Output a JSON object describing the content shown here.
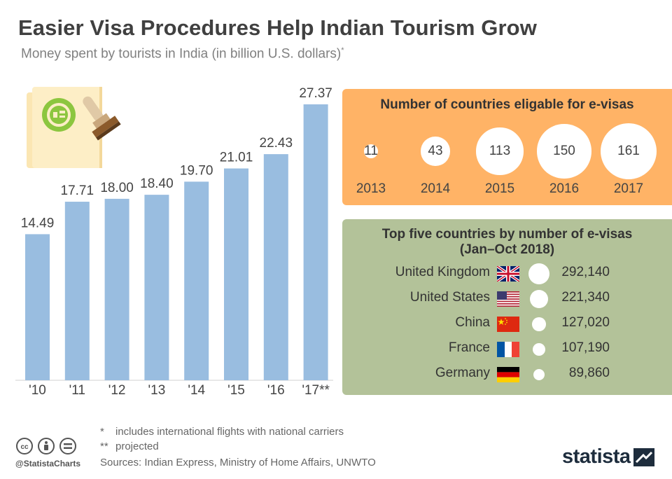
{
  "header": {
    "title": "Easier Visa Procedures Help Indian Tourism Grow",
    "subtitle": "Money spent by tourists in India (in billion U.S. dollars)",
    "subtitle_mark": "*"
  },
  "chart_data": [
    {
      "type": "bar",
      "categories": [
        "'10",
        "'11",
        "'12",
        "'13",
        "'14",
        "'15",
        "'16",
        "'17**"
      ],
      "values": [
        14.49,
        17.71,
        18.0,
        18.4,
        19.7,
        21.01,
        22.43,
        27.37
      ],
      "value_labels": [
        "14.49",
        "17.71",
        "18.00",
        "18.40",
        "19.70",
        "21.01",
        "22.43",
        "27.37"
      ],
      "ylim": [
        0,
        27.37
      ],
      "bar_color": "#99bde0",
      "grid": false
    },
    {
      "type": "bubble",
      "title": "Number of countries eligable for e-visas",
      "categories": [
        "2013",
        "2014",
        "2015",
        "2016",
        "2017"
      ],
      "values": [
        11,
        43,
        113,
        150,
        161
      ],
      "value_labels": [
        "11",
        "43",
        "113",
        "150",
        "161"
      ]
    },
    {
      "type": "table",
      "title": "Top five countries by number of e-visas",
      "title_line2": "(Jan–Oct 2018)",
      "rows": [
        {
          "country": "United Kingdom",
          "flag": "uk-flag-icon",
          "value": 292140,
          "label": "292,140"
        },
        {
          "country": "United States",
          "flag": "us-flag-icon",
          "value": 221340,
          "label": "221,340"
        },
        {
          "country": "China",
          "flag": "china-flag-icon",
          "value": 127020,
          "label": "127,020"
        },
        {
          "country": "France",
          "flag": "france-flag-icon",
          "value": 107190,
          "label": "107,190"
        },
        {
          "country": "Germany",
          "flag": "germany-flag-icon",
          "value": 89860,
          "label": "89,860"
        }
      ]
    }
  ],
  "footer": {
    "note1_symbol": "*",
    "note1_text": "includes international flights with national carriers",
    "note2_symbol": "**",
    "note2_text": "projected",
    "sources": "Sources: Indian Express, Ministry of Home Affairs, UNWTO",
    "handle": "@StatistaCharts",
    "brand": "statista"
  },
  "colors": {
    "bar": "#99bde0",
    "panel_orange": "#ffb366",
    "panel_green": "#b3c299",
    "title": "#404040"
  },
  "icons": [
    "passport-stamp-icon",
    "cc-icon",
    "by-icon",
    "nd-icon",
    "statista-logo-icon"
  ]
}
